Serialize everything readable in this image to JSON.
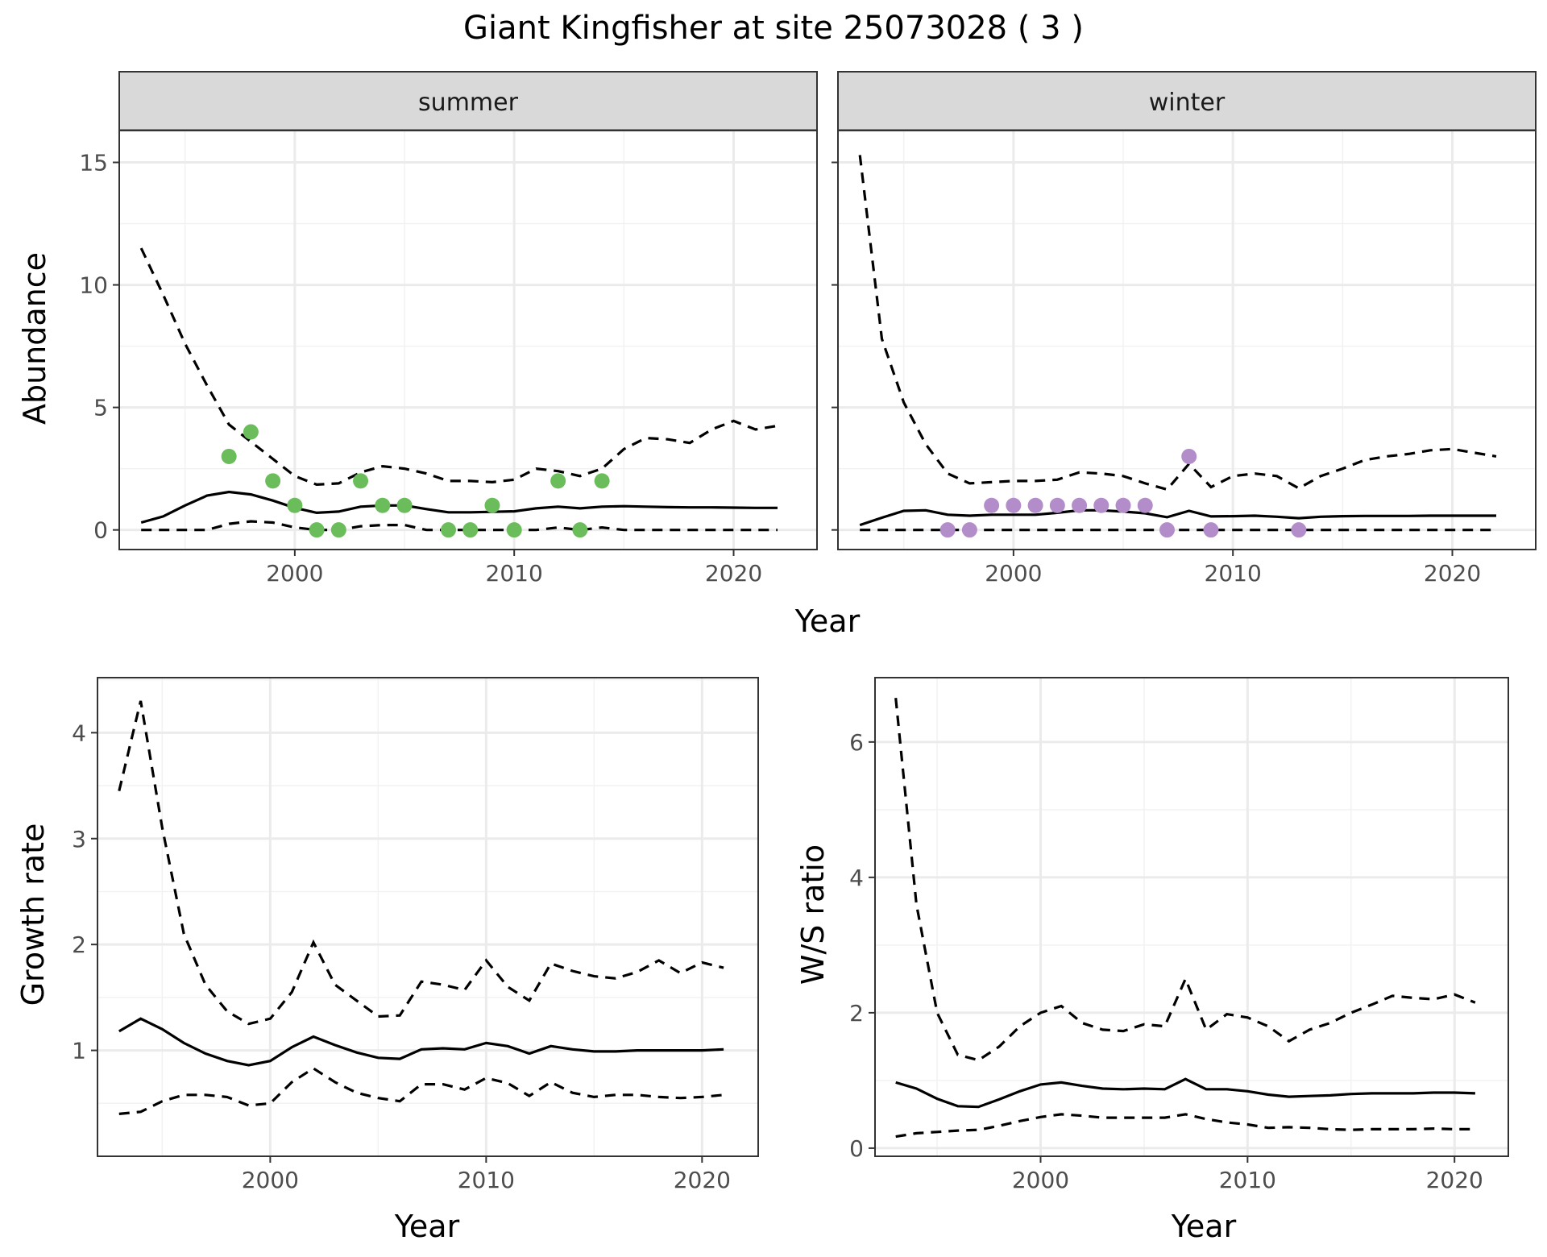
{
  "figure": {
    "title": "Giant Kingfisher at site 25073028 ( 3 )",
    "colors": {
      "summer_points": "#6bbd5b",
      "winter_points": "#b28dc9",
      "lines": "#000000",
      "strip_fill": "#d9d9d9",
      "grid": "#ebebeb"
    }
  },
  "chart_data": [
    {
      "type": "line",
      "facet": "summer",
      "strip": "summer",
      "xlabel": "Year",
      "ylabel": "Abundance",
      "xlim": [
        1992.0,
        2023.8
      ],
      "ylim": [
        -0.8,
        16.3
      ],
      "xticks": [
        2000,
        2010,
        2020
      ],
      "yticks": [
        0,
        5,
        10,
        15
      ],
      "grid": true,
      "lines": {
        "x": [
          1993,
          1994,
          1995,
          1996,
          1997,
          1998,
          1999,
          2000,
          2001,
          2002,
          2003,
          2004,
          2005,
          2006,
          2007,
          2008,
          2009,
          2010,
          2011,
          2012,
          2013,
          2014,
          2015,
          2016,
          2017,
          2018,
          2019,
          2020,
          2021,
          2022
        ],
        "mean": [
          0.3,
          0.55,
          1.0,
          1.4,
          1.55,
          1.45,
          1.2,
          0.9,
          0.7,
          0.75,
          0.95,
          1.0,
          1.0,
          0.85,
          0.72,
          0.72,
          0.74,
          0.76,
          0.88,
          0.95,
          0.88,
          0.95,
          0.97,
          0.95,
          0.93,
          0.92,
          0.92,
          0.91,
          0.9,
          0.9
        ],
        "upper": [
          11.5,
          9.6,
          7.6,
          5.9,
          4.3,
          3.6,
          2.9,
          2.2,
          1.85,
          1.9,
          2.35,
          2.6,
          2.5,
          2.3,
          2.0,
          2.0,
          1.95,
          2.05,
          2.5,
          2.4,
          2.2,
          2.5,
          3.3,
          3.75,
          3.7,
          3.55,
          4.1,
          4.45,
          4.1,
          4.25
        ],
        "lower": [
          0.0,
          0.0,
          0.0,
          0.0,
          0.25,
          0.35,
          0.3,
          0.1,
          0.0,
          0.0,
          0.15,
          0.2,
          0.2,
          0.0,
          0.0,
          0.0,
          0.0,
          0.0,
          0.0,
          0.1,
          0.0,
          0.1,
          0.0,
          0.0,
          0.0,
          0.0,
          0.0,
          0.0,
          0.0,
          0.0
        ]
      },
      "points": {
        "x": [
          1997,
          1998,
          1999,
          2000,
          2001,
          2002,
          2003,
          2004,
          2005,
          2007,
          2008,
          2009,
          2010,
          2012,
          2013,
          2014
        ],
        "y": [
          3,
          4,
          2,
          1,
          0,
          0,
          2,
          1,
          1,
          0,
          0,
          1,
          0,
          2,
          0,
          2
        ]
      }
    },
    {
      "type": "line",
      "facet": "winter",
      "strip": "winter",
      "xlabel": "Year",
      "ylabel": "Abundance",
      "xlim": [
        1992.0,
        2023.8
      ],
      "ylim": [
        -0.8,
        16.3
      ],
      "xticks": [
        2000,
        2010,
        2020
      ],
      "yticks": [
        0,
        5,
        10,
        15
      ],
      "grid": true,
      "lines": {
        "x": [
          1993,
          1994,
          1995,
          1996,
          1997,
          1998,
          1999,
          2000,
          2001,
          2002,
          2003,
          2004,
          2005,
          2006,
          2007,
          2008,
          2009,
          2010,
          2011,
          2012,
          2013,
          2014,
          2015,
          2016,
          2017,
          2018,
          2019,
          2020,
          2021,
          2022
        ],
        "mean": [
          0.2,
          0.5,
          0.78,
          0.8,
          0.62,
          0.58,
          0.62,
          0.62,
          0.62,
          0.7,
          0.8,
          0.8,
          0.75,
          0.68,
          0.52,
          0.78,
          0.55,
          0.56,
          0.58,
          0.54,
          0.48,
          0.54,
          0.56,
          0.57,
          0.57,
          0.57,
          0.58,
          0.58,
          0.58,
          0.58
        ],
        "upper": [
          15.3,
          7.8,
          5.2,
          3.5,
          2.3,
          1.9,
          1.95,
          2.0,
          2.0,
          2.05,
          2.35,
          2.3,
          2.2,
          1.9,
          1.65,
          2.7,
          1.75,
          2.2,
          2.3,
          2.2,
          1.7,
          2.2,
          2.5,
          2.85,
          3.0,
          3.1,
          3.25,
          3.3,
          3.15,
          3.0
        ],
        "lower": [
          0.0,
          0.0,
          0.0,
          0.0,
          0.0,
          0.0,
          0.0,
          0.0,
          0.0,
          0.0,
          0.0,
          0.0,
          0.0,
          0.0,
          0.0,
          0.0,
          0.0,
          0.0,
          0.0,
          0.0,
          0.0,
          0.0,
          0.0,
          0.0,
          0.0,
          0.0,
          0.0,
          0.0,
          0.0,
          0.0
        ]
      },
      "points": {
        "x": [
          1997,
          1998,
          1999,
          2000,
          2001,
          2002,
          2003,
          2004,
          2005,
          2006,
          2007,
          2008,
          2009,
          2013
        ],
        "y": [
          0,
          0,
          1,
          1,
          1,
          1,
          1,
          1,
          1,
          1,
          0,
          3,
          0,
          0
        ]
      }
    },
    {
      "type": "line",
      "facet": "growth",
      "xlabel": "Year",
      "ylabel": "Growth rate",
      "xlim": [
        1992.0,
        2022.6
      ],
      "ylim": [
        0.0,
        4.52
      ],
      "xticks": [
        2000,
        2010,
        2020
      ],
      "yticks": [
        1,
        2,
        3,
        4
      ],
      "grid": true,
      "lines": {
        "x": [
          1993,
          1994,
          1995,
          1996,
          1997,
          1998,
          1999,
          2000,
          2001,
          2002,
          2003,
          2004,
          2005,
          2006,
          2007,
          2008,
          2009,
          2010,
          2011,
          2012,
          2013,
          2014,
          2015,
          2016,
          2017,
          2018,
          2019,
          2020,
          2021
        ],
        "mean": [
          1.18,
          1.3,
          1.2,
          1.07,
          0.97,
          0.9,
          0.86,
          0.9,
          1.03,
          1.13,
          1.05,
          0.98,
          0.93,
          0.92,
          1.01,
          1.02,
          1.01,
          1.07,
          1.04,
          0.97,
          1.04,
          1.01,
          0.99,
          0.99,
          1.0,
          1.0,
          1.0,
          1.0,
          1.01
        ],
        "upper": [
          3.45,
          4.3,
          3.1,
          2.1,
          1.62,
          1.37,
          1.25,
          1.3,
          1.55,
          2.02,
          1.62,
          1.47,
          1.32,
          1.33,
          1.65,
          1.62,
          1.57,
          1.85,
          1.6,
          1.47,
          1.82,
          1.75,
          1.7,
          1.68,
          1.74,
          1.85,
          1.73,
          1.83,
          1.78
        ],
        "lower": [
          0.4,
          0.42,
          0.52,
          0.58,
          0.58,
          0.56,
          0.48,
          0.5,
          0.7,
          0.83,
          0.7,
          0.6,
          0.55,
          0.52,
          0.68,
          0.68,
          0.63,
          0.74,
          0.69,
          0.57,
          0.7,
          0.6,
          0.56,
          0.58,
          0.58,
          0.56,
          0.55,
          0.56,
          0.58
        ]
      }
    },
    {
      "type": "line",
      "facet": "ratio",
      "xlabel": "Year",
      "ylabel": "W/S ratio",
      "xlim": [
        1992.0,
        2022.6
      ],
      "ylim": [
        -0.12,
        6.95
      ],
      "xticks": [
        2000,
        2010,
        2020
      ],
      "yticks": [
        0,
        2,
        4,
        6
      ],
      "grid": true,
      "lines": {
        "x": [
          1993,
          1994,
          1995,
          1996,
          1997,
          1998,
          1999,
          2000,
          2001,
          2002,
          2003,
          2004,
          2005,
          2006,
          2007,
          2008,
          2009,
          2010,
          2011,
          2012,
          2013,
          2014,
          2015,
          2016,
          2017,
          2018,
          2019,
          2020,
          2021
        ],
        "mean": [
          0.97,
          0.88,
          0.73,
          0.62,
          0.61,
          0.72,
          0.84,
          0.94,
          0.97,
          0.92,
          0.88,
          0.87,
          0.88,
          0.87,
          1.02,
          0.87,
          0.87,
          0.84,
          0.79,
          0.76,
          0.77,
          0.78,
          0.8,
          0.81,
          0.81,
          0.81,
          0.82,
          0.82,
          0.81
        ],
        "upper": [
          6.65,
          3.6,
          2.0,
          1.38,
          1.3,
          1.5,
          1.8,
          2.0,
          2.1,
          1.85,
          1.75,
          1.73,
          1.83,
          1.8,
          2.5,
          1.75,
          1.98,
          1.93,
          1.8,
          1.58,
          1.75,
          1.85,
          2.0,
          2.12,
          2.25,
          2.22,
          2.2,
          2.27,
          2.15
        ],
        "lower": [
          0.17,
          0.22,
          0.24,
          0.26,
          0.27,
          0.33,
          0.4,
          0.46,
          0.5,
          0.48,
          0.45,
          0.45,
          0.45,
          0.45,
          0.5,
          0.43,
          0.38,
          0.35,
          0.3,
          0.31,
          0.3,
          0.28,
          0.27,
          0.28,
          0.28,
          0.28,
          0.29,
          0.28,
          0.28
        ]
      }
    }
  ]
}
